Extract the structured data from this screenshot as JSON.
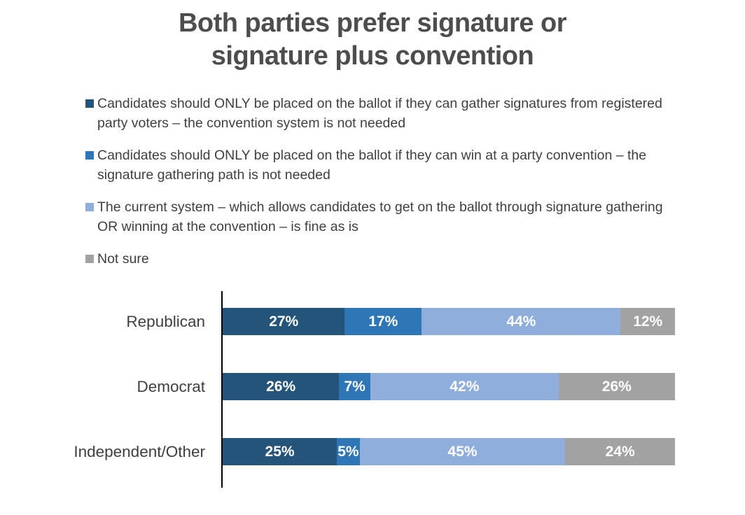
{
  "title": "Both parties prefer signature or signature plus convention",
  "colors": {
    "title_text": "#4d4d4d",
    "body_text": "#3f3f3f",
    "axis": "#000000",
    "bar_label_text": "#ffffff"
  },
  "chart_data": {
    "type": "bar",
    "subtype": "horizontal-stacked",
    "title": "Both parties prefer signature or signature plus convention",
    "categories": [
      "Republican",
      "Democrat",
      "Independent/Other"
    ],
    "series": [
      {
        "name": "Candidates should ONLY be placed on the ballot if they can gather signatures from registered party voters – the convention system is not needed",
        "color": "#24547a",
        "values": [
          27,
          26,
          25
        ]
      },
      {
        "name": "Candidates should ONLY be placed on the ballot if they can win at a party convention – the signature gathering path is not needed",
        "color": "#2e76b5",
        "values": [
          17,
          7,
          5
        ]
      },
      {
        "name": "The current system – which allows candidates to get on the ballot through signature gathering OR winning at the convention – is fine as is",
        "color": "#8faedb",
        "values": [
          44,
          42,
          45
        ]
      },
      {
        "name": "Not sure",
        "color": "#a2a2a2",
        "values": [
          12,
          26,
          24
        ]
      }
    ],
    "value_suffix": "%",
    "xlim": [
      0,
      100
    ],
    "grid": false,
    "legend_position": "top-left",
    "data_labels": "inside-center-white-bold"
  }
}
